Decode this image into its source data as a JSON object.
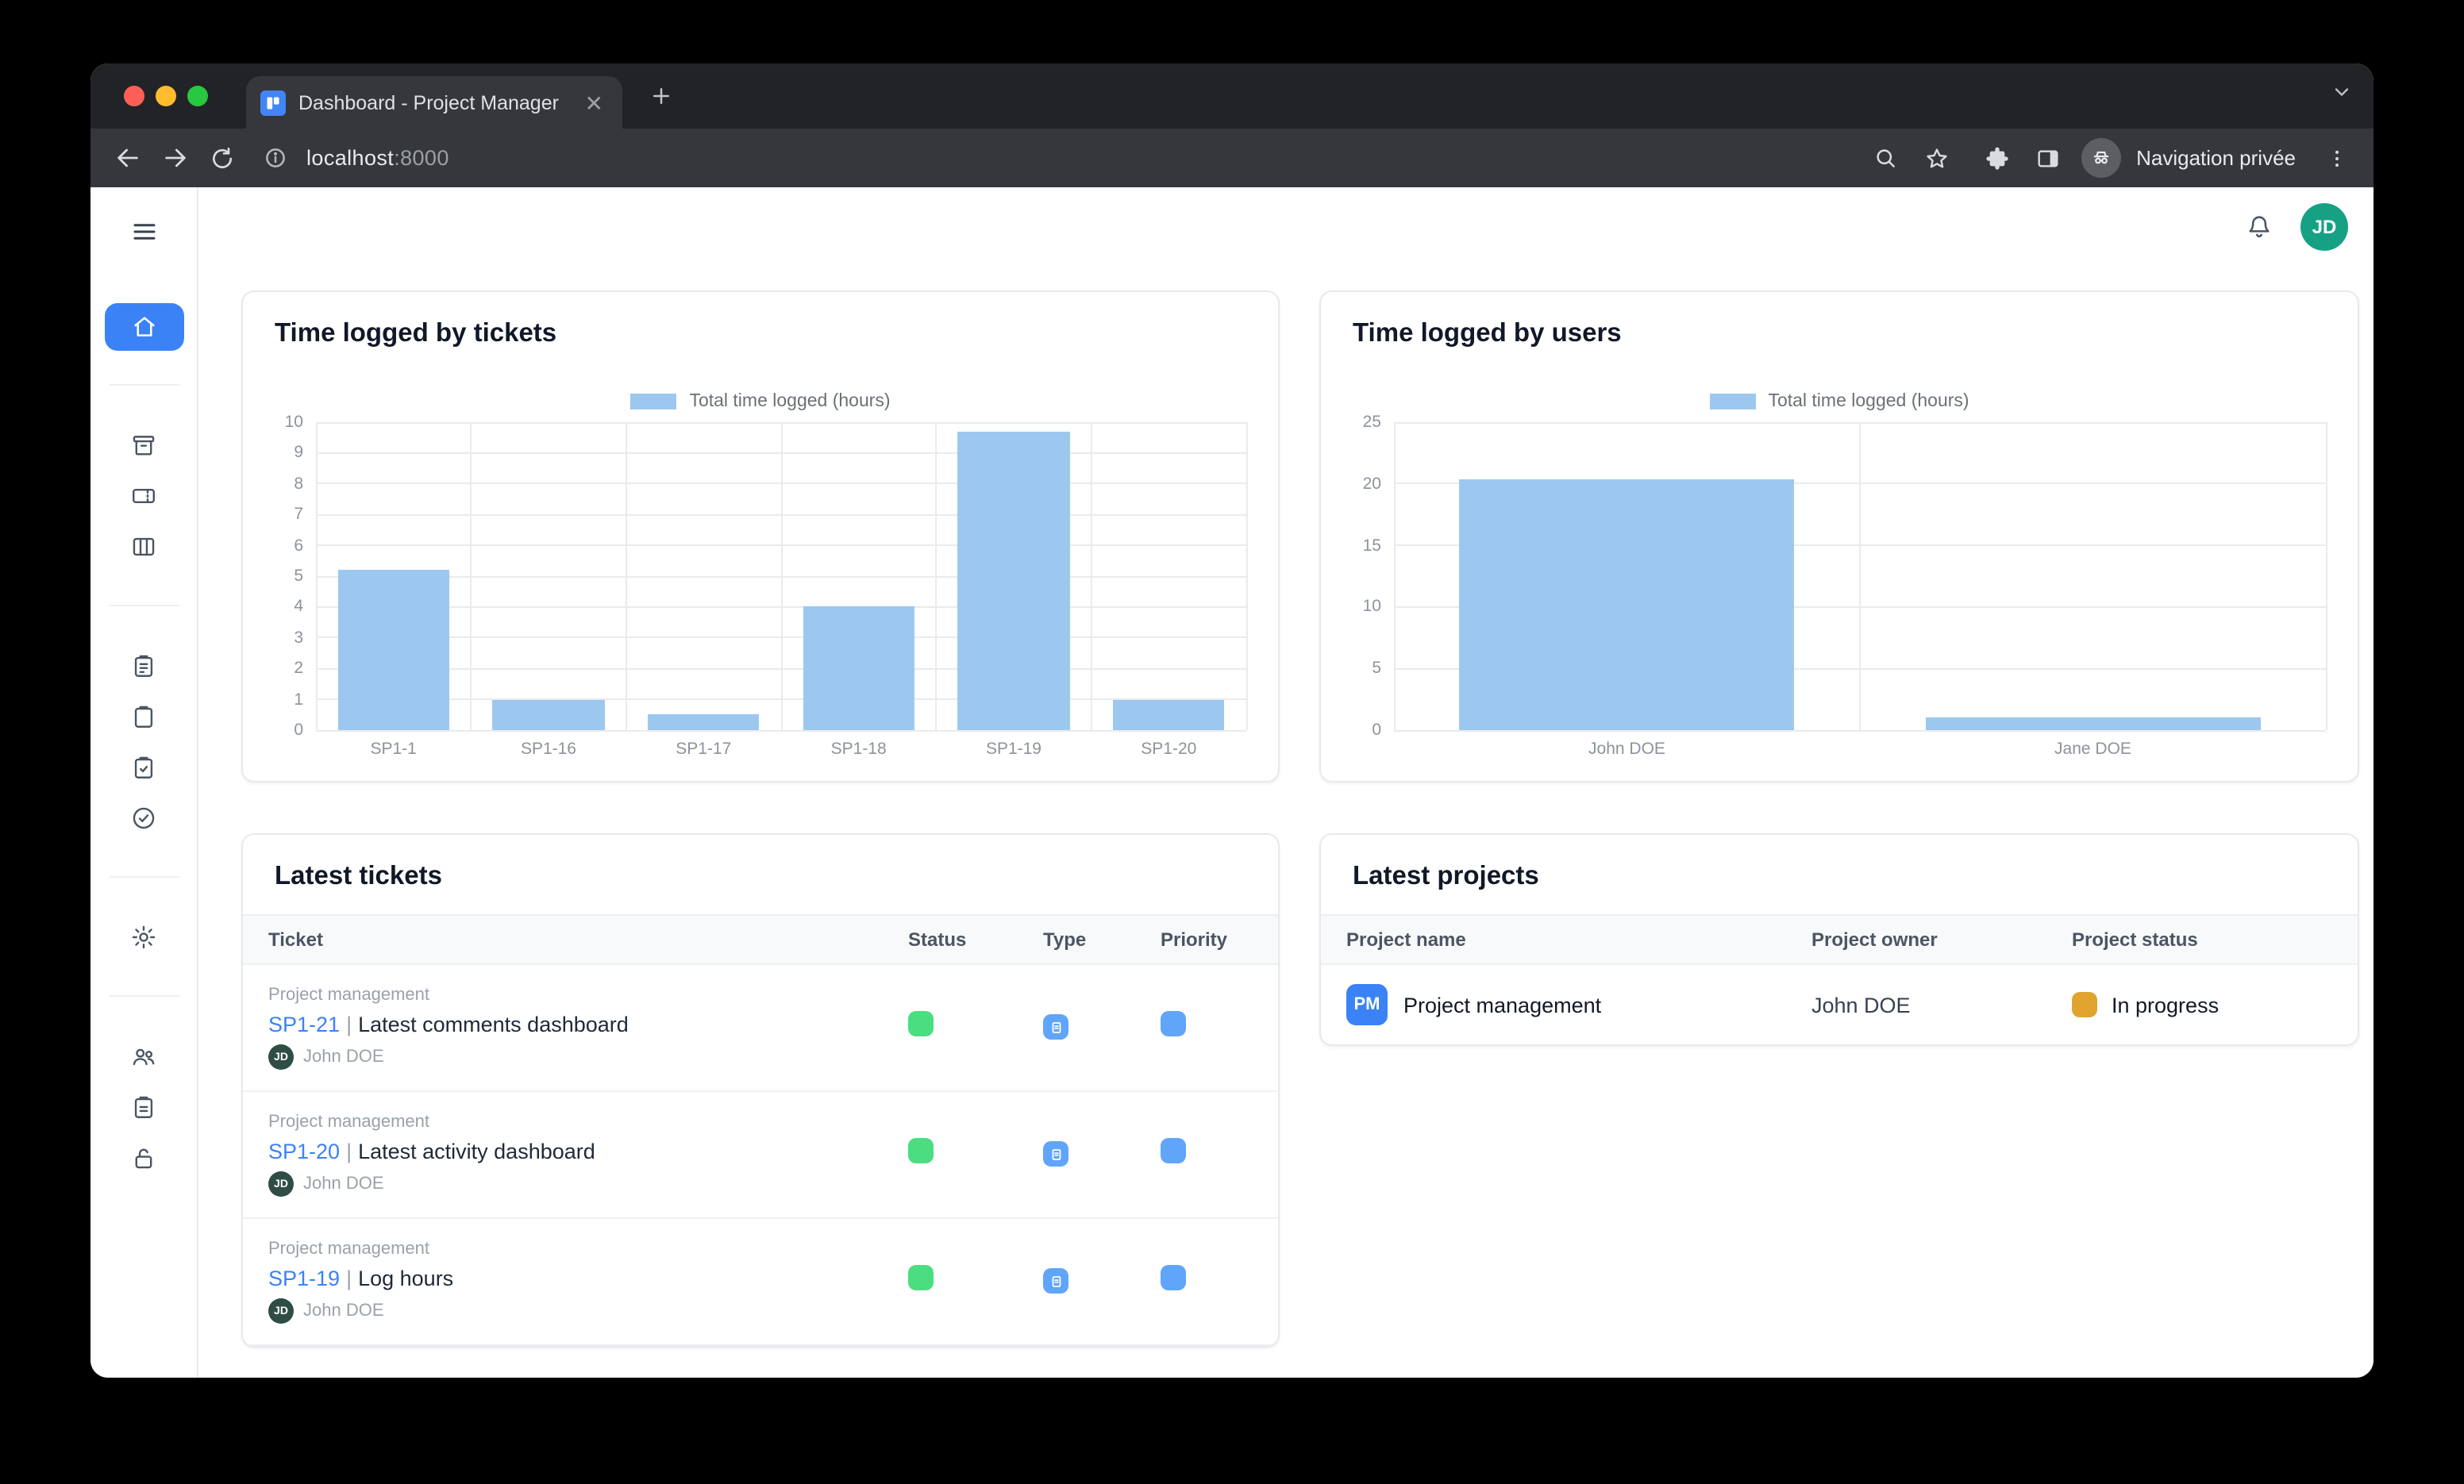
{
  "browser": {
    "tab_title": "Dashboard - Project Manager",
    "url_host": "localhost",
    "url_port": ":8000",
    "private_label": "Navigation privée"
  },
  "header": {
    "avatar_initials": "JD"
  },
  "sidebar": {
    "items": [
      "menu",
      "home",
      "archive",
      "ticket",
      "kanban",
      "clipboard-list",
      "clipboard",
      "clipboard-check",
      "check-circle",
      "settings",
      "users",
      "clipboard-report",
      "lock"
    ]
  },
  "tickets_table": {
    "title": "Latest tickets",
    "columns": [
      "Ticket",
      "Status",
      "Type",
      "Priority"
    ],
    "rows": [
      {
        "project": "Project management",
        "key": "SP1-21",
        "sep": "|",
        "title": "Latest comments dashboard",
        "assignee": "John DOE",
        "assignee_initials": "JD"
      },
      {
        "project": "Project management",
        "key": "SP1-20",
        "sep": "|",
        "title": "Latest activity dashboard",
        "assignee": "John DOE",
        "assignee_initials": "JD"
      },
      {
        "project": "Project management",
        "key": "SP1-19",
        "sep": "|",
        "title": "Log hours",
        "assignee": "John DOE",
        "assignee_initials": "JD"
      }
    ]
  },
  "projects_table": {
    "title": "Latest projects",
    "columns": [
      "Project name",
      "Project owner",
      "Project status"
    ],
    "rows": [
      {
        "badge": "PM",
        "name": "Project management",
        "owner": "John DOE",
        "status": "In progress"
      }
    ]
  },
  "chart_data": [
    {
      "type": "bar",
      "title": "Time logged by tickets",
      "legend": "Total time logged (hours)",
      "categories": [
        "SP1-1",
        "SP1-16",
        "SP1-17",
        "SP1-18",
        "SP1-19",
        "SP1-20"
      ],
      "values": [
        5.2,
        1,
        0.5,
        4,
        9.7,
        1
      ],
      "ylim": [
        0,
        10
      ],
      "ystep": 1,
      "grid": true,
      "legend_position": "top",
      "bar_color": "#9cc8ef"
    },
    {
      "type": "bar",
      "title": "Time logged by users",
      "legend": "Total time logged (hours)",
      "categories": [
        "John DOE",
        "Jane DOE"
      ],
      "values": [
        20.4,
        1
      ],
      "ylim": [
        0,
        25
      ],
      "ystep": 5,
      "grid": true,
      "legend_position": "top",
      "bar_color": "#9cc8ef"
    }
  ],
  "colors": {
    "accent_blue": "#3b82f6",
    "bar_blue": "#9cc8ef",
    "status_green": "#4ade80",
    "type_blue": "#60a5fa",
    "priority_blue": "#60a5fa",
    "in_progress_amber": "#e0a32e",
    "avatar_teal": "#16a184",
    "assignee_avatar": "#2f4d46"
  }
}
